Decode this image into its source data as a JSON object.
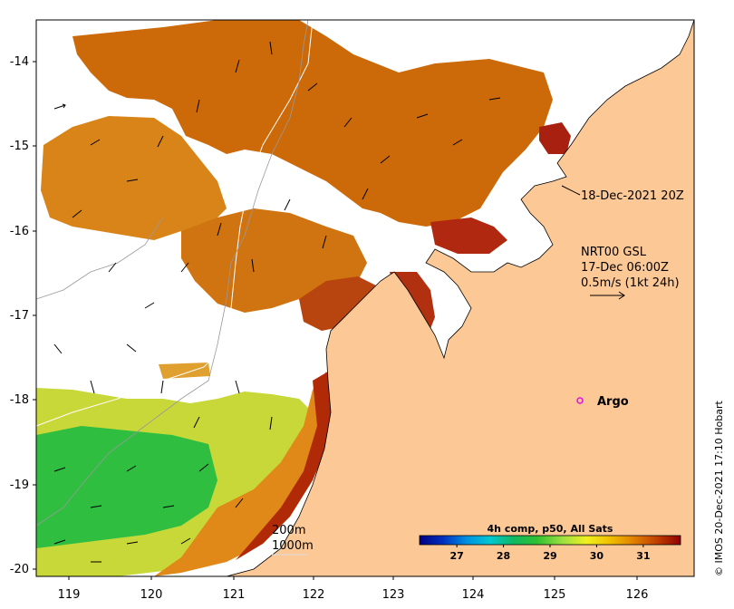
{
  "map": {
    "lon_ticks": [
      "119",
      "120",
      "121",
      "122",
      "123",
      "124",
      "125",
      "126"
    ],
    "lat_ticks": [
      "-14",
      "-15",
      "-16",
      "-17",
      "-18",
      "-19",
      "-20"
    ],
    "composite_time": "18-Dec-2021 20Z",
    "current_model": "NRT00 GSL",
    "current_time": "17-Dec 06:00Z",
    "current_scale": "0.5m/s (1kt 24h)",
    "argo_label": "Argo",
    "contour_200": "200m",
    "contour_1000": "1000m",
    "colorbar_title": "4h comp, p50, All Sats",
    "colorbar_ticks": [
      "27",
      "28",
      "29",
      "30",
      "31"
    ],
    "colorbar_range": [
      26.2,
      31.8
    ],
    "credit": "© IMOS 20-Dec-2021 17:10 Hobart",
    "colors": {
      "land": "#fcc896",
      "argo": "#e010e0",
      "colormap": [
        "#000080",
        "#0030c0",
        "#0090e0",
        "#00c8d0",
        "#10b860",
        "#30c030",
        "#a0e040",
        "#f0f020",
        "#f0c000",
        "#e08000",
        "#c04000",
        "#900000"
      ]
    }
  }
}
